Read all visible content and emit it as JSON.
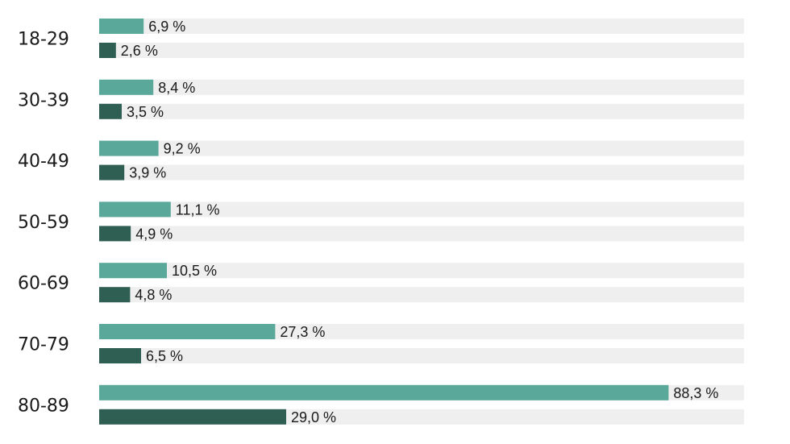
{
  "chart_data": {
    "type": "bar",
    "orientation": "horizontal",
    "categories": [
      "18-29",
      "30-39",
      "40-49",
      "50-59",
      "60-69",
      "70-79",
      "80-89"
    ],
    "series": [
      {
        "values": [
          6.9,
          8.4,
          9.2,
          11.1,
          10.5,
          27.3,
          88.3
        ],
        "color": "#5aa89a"
      },
      {
        "values": [
          2.6,
          3.5,
          3.9,
          4.9,
          4.8,
          6.5,
          29.0
        ],
        "color": "#2f5e53"
      }
    ],
    "value_labels": [
      [
        "6,9 %",
        "8,4 %",
        "9,2 %",
        "11,1 %",
        "10,5 %",
        "27,3 %",
        "88,3 %"
      ],
      [
        "2,6 %",
        "3,5 %",
        "3,9 %",
        "4,9 %",
        "4,8 %",
        "6,5 %",
        "29,0 %"
      ]
    ],
    "xlim": [
      0,
      100
    ],
    "track_color": "#efefef",
    "grid": false,
    "legend": "none",
    "title": "",
    "xlabel": "",
    "ylabel": ""
  }
}
